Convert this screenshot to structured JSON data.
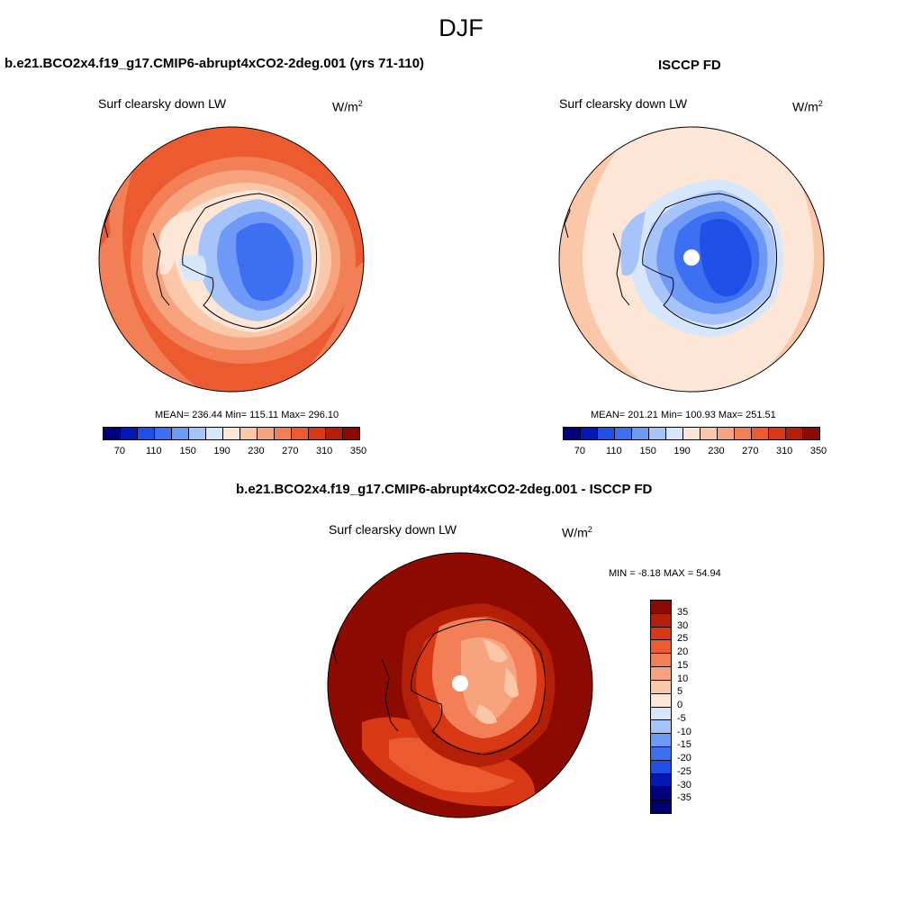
{
  "title": "DJF",
  "panels": {
    "model": {
      "title": "b.e21.BCO2x4.f19_g17.CMIP6-abrupt4xCO2-2deg.001 (yrs 71-110)",
      "variable": "Surf clearsky down LW",
      "units_base": "W/m",
      "units_exp": "2",
      "stats": "MEAN= 236.44  Min= 115.11  Max= 296.10"
    },
    "obs": {
      "title": "ISCCP FD",
      "variable": "Surf clearsky down LW",
      "units_base": "W/m",
      "units_exp": "2",
      "stats": "MEAN= 201.21  Min= 100.93  Max= 251.51"
    },
    "diff": {
      "title": "b.e21.BCO2x4.f19_g17.CMIP6-abrupt4xCO2-2deg.001 - ISCCP FD",
      "variable": "Surf clearsky down LW",
      "units_base": "W/m",
      "units_exp": "2",
      "stats": "MIN =  -8.18 MAX =  54.94"
    }
  },
  "colorbar_abs": {
    "colors": [
      "#00007f",
      "#0019b3",
      "#1f4fe6",
      "#3d6ff2",
      "#6f99f7",
      "#a6c4f9",
      "#d6e6fb",
      "#fde6d6",
      "#fbc7a9",
      "#f7a37d",
      "#f27f56",
      "#ec5b30",
      "#d93815",
      "#b41f08",
      "#8c0a00"
    ],
    "ticks": [
      "70",
      "110",
      "150",
      "190",
      "230",
      "270",
      "310",
      "350"
    ]
  },
  "colorbar_diff": {
    "colors": [
      "#8c0a00",
      "#b41f08",
      "#d93815",
      "#ec5b30",
      "#f27f56",
      "#f7a37d",
      "#fbc7a9",
      "#fde6d6",
      "#d6e6fb",
      "#a6c4f9",
      "#6f99f7",
      "#3d6ff2",
      "#1f4fe6",
      "#0019b3",
      "#00007f",
      "#00006a"
    ],
    "ticks": [
      "35",
      "30",
      "25",
      "20",
      "15",
      "10",
      "5",
      "0",
      "-5",
      "-10",
      "-15",
      "-20",
      "-25",
      "-30",
      "-35"
    ]
  }
}
